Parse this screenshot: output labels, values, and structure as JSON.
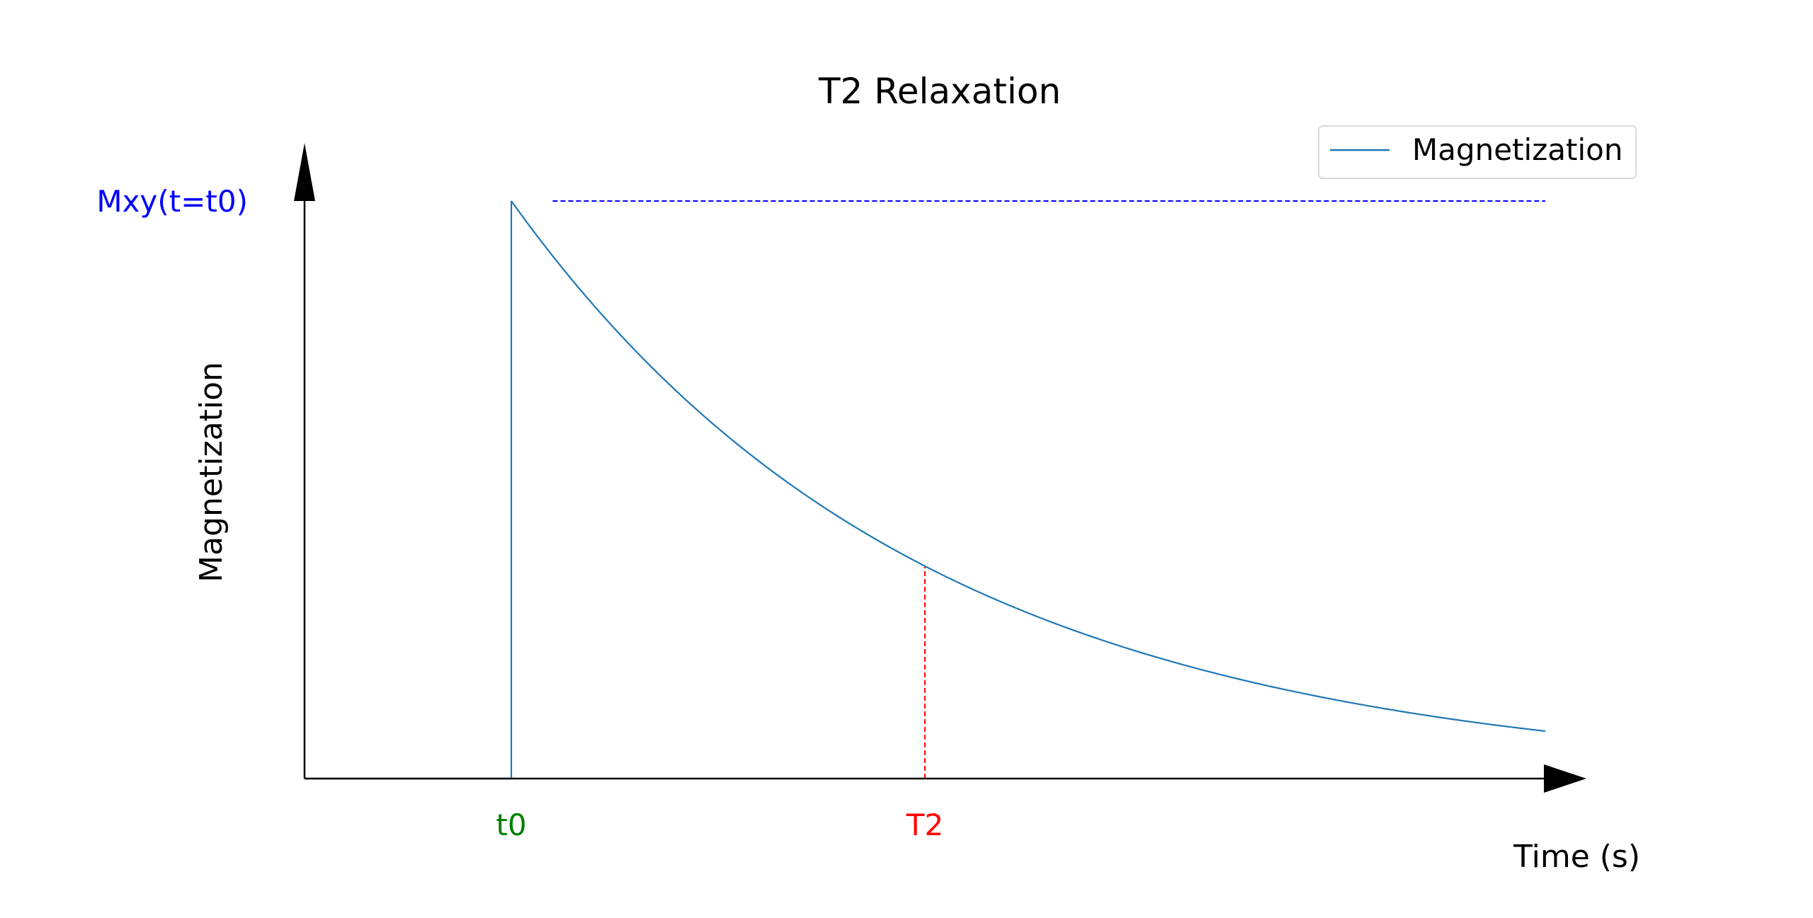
{
  "chart_data": {
    "type": "line",
    "title": "T2 Relaxation",
    "xlabel": "Time (s)",
    "ylabel": "Magnetization",
    "x_axis_ticks": [
      {
        "label": "t0",
        "x": 1,
        "color": "#008000"
      },
      {
        "label": "T2",
        "x": 3,
        "color": "#ff0000"
      }
    ],
    "y_axis_ticks": [
      {
        "label": "Mxy(t=t0)",
        "y": 1,
        "color": "#0000ff"
      }
    ],
    "xlim": [
      0,
      6
    ],
    "ylim": [
      0,
      1
    ],
    "grid": false,
    "legend_position": "upper right",
    "series": [
      {
        "name": "Magnetization",
        "color": "#1f77b4",
        "segments": [
          {
            "x": [
              0,
              1
            ],
            "y": [
              0,
              0
            ]
          },
          {
            "x": [
              1,
              1
            ],
            "y": [
              0,
              1
            ]
          },
          {
            "equation": "exp(-(x - 1) / 2)",
            "x_start": 1,
            "x_end": 6
          }
        ]
      }
    ],
    "reference_lines": [
      {
        "orientation": "horizontal",
        "y": 1,
        "x_start": 1.2,
        "x_end": 6,
        "style": "dashed",
        "color": "#0000ff"
      },
      {
        "orientation": "vertical",
        "x": 1,
        "y_start": 0,
        "y_end": 1,
        "style": "dashed",
        "color": "#008000"
      },
      {
        "orientation": "vertical",
        "x": 3,
        "y_start": 0,
        "y_end": 0.3679,
        "style": "dashed",
        "color": "#ff0000"
      }
    ]
  }
}
